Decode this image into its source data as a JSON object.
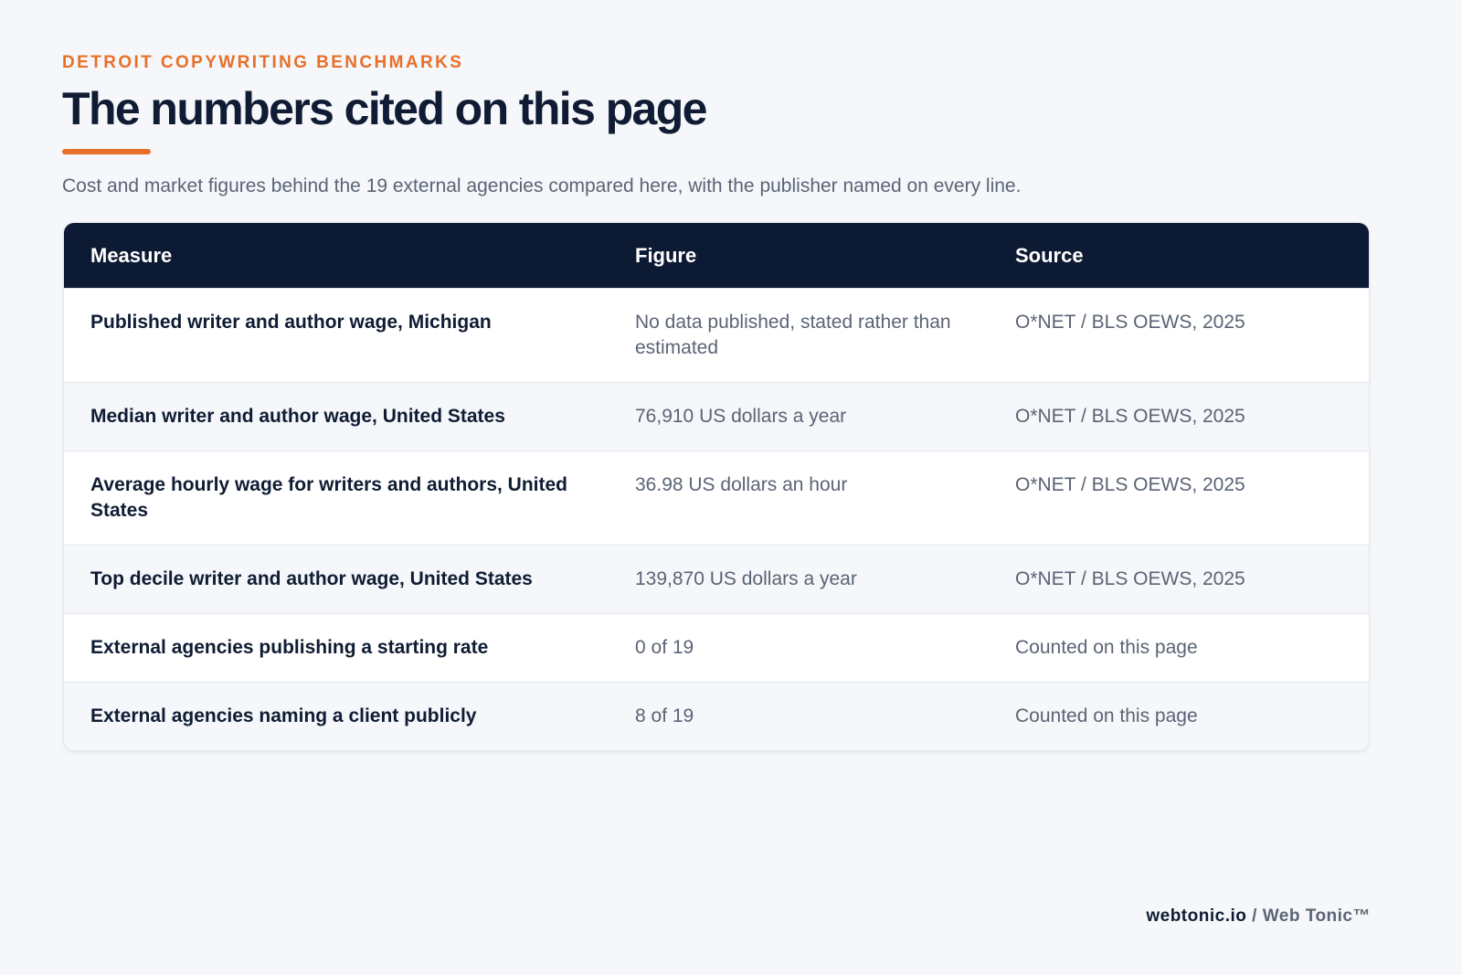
{
  "header": {
    "eyebrow": "DETROIT COPYWRITING BENCHMARKS",
    "title": "The numbers cited on this page",
    "subtitle": "Cost and market figures behind the 19 external agencies compared here, with the publisher named on every line."
  },
  "table": {
    "columns": [
      "Measure",
      "Figure",
      "Source"
    ],
    "rows": [
      [
        "Published writer and author wage, Michigan",
        "No data published, stated rather than estimated",
        "O*NET / BLS OEWS, 2025"
      ],
      [
        "Median writer and author wage, United States",
        "76,910 US dollars a year",
        "O*NET / BLS OEWS, 2025"
      ],
      [
        "Average hourly wage for writers and authors, United States",
        "36.98 US dollars an hour",
        "O*NET / BLS OEWS, 2025"
      ],
      [
        "Top decile writer and author wage, United States",
        "139,870 US dollars a year",
        "O*NET / BLS OEWS, 2025"
      ],
      [
        "External agencies publishing a starting rate",
        "0 of 19",
        "Counted on this page"
      ],
      [
        "External agencies naming a client publicly",
        "8 of 19",
        "Counted on this page"
      ]
    ]
  },
  "footer": {
    "site": "webtonic.io",
    "separator": "/",
    "brand": "Web Tonic™"
  }
}
